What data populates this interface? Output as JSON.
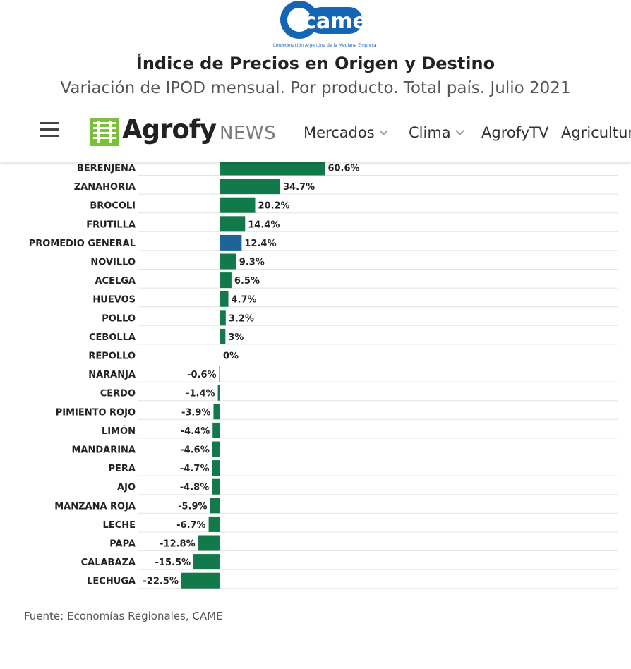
{
  "header": {
    "logo_text": "came",
    "logo_subtext": "Confederación Argentina de la Mediana Empresa",
    "title": "Índice de Precios en Origen y Destino",
    "subtitle": "Variación de IPOD mensual. Por producto. Total país. Julio 2021"
  },
  "navbar": {
    "brand": "Agrofy",
    "brand_suffix": "NEWS",
    "items": [
      {
        "label": "Mercados",
        "dropdown": true
      },
      {
        "label": "Clima",
        "dropdown": true
      },
      {
        "label": "AgrofyTV",
        "dropdown": false
      },
      {
        "label": "Agricultura",
        "dropdown": false
      }
    ]
  },
  "colors": {
    "bar": "#12794a",
    "highlight": "#1e6597",
    "grid": "#e3e3e3",
    "logo_blue": "#1565b5"
  },
  "chart_data": {
    "type": "bar",
    "orientation": "horizontal",
    "categories": [
      "BERENJENA",
      "ZANAHORIA",
      "BROCOLI",
      "FRUTILLA",
      "PROMEDIO GENERAL",
      "NOVILLO",
      "ACELGA",
      "HUEVOS",
      "POLLO",
      "CEBOLLA",
      "REPOLLO",
      "NARANJA",
      "CERDO",
      "PIMIENTO ROJO",
      "LIMÓN",
      "MANDARINA",
      "PERA",
      "AJO",
      "MANZANA ROJA",
      "LECHE",
      "PAPA",
      "CALABAZA",
      "LECHUGA"
    ],
    "values": [
      60.6,
      34.7,
      20.2,
      14.4,
      12.4,
      9.3,
      6.5,
      4.7,
      3.2,
      3,
      0,
      -0.6,
      -1.4,
      -3.9,
      -4.4,
      -4.6,
      -4.7,
      -4.8,
      -5.9,
      -6.7,
      -12.8,
      -15.5,
      -22.5
    ],
    "value_labels": [
      "60.6%",
      "34.7%",
      "20.2%",
      "14.4%",
      "12.4%",
      "9.3%",
      "6.5%",
      "4.7%",
      "3.2%",
      "3%",
      "0%",
      "-0.6%",
      "-1.4%",
      "-3.9%",
      "-4.4%",
      "-4.6%",
      "-4.7%",
      "-4.8%",
      "-5.9%",
      "-6.7%",
      "-12.8%",
      "-15.5%",
      "-22.5%"
    ],
    "highlight_category": "PROMEDIO GENERAL",
    "grid": true
  },
  "footer": {
    "source": "Fuente: Economías Regionales, CAME"
  }
}
